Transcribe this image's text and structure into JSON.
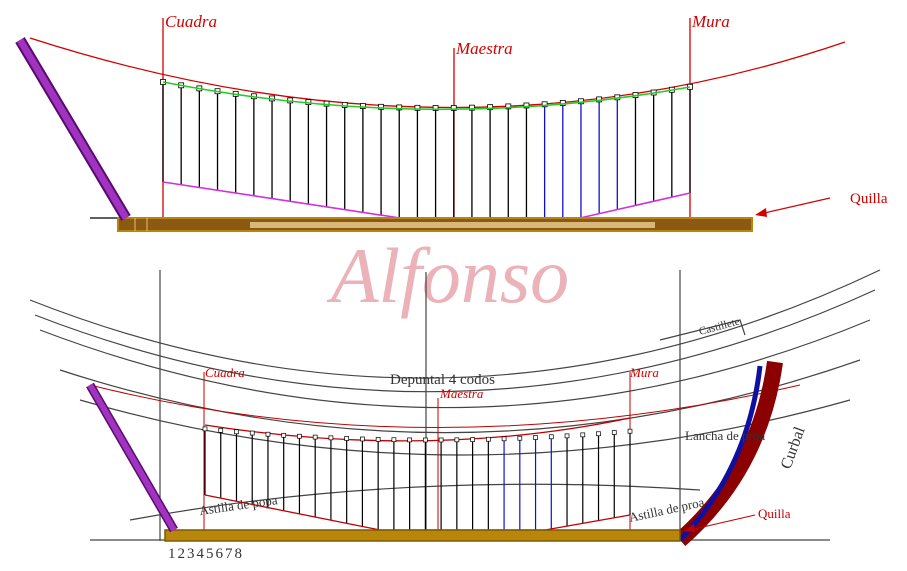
{
  "watermark": "Alfonso",
  "top": {
    "labels": {
      "cuadra": "Cuadra",
      "maestra": "Maestra",
      "mura": "Mura",
      "quilla": "Quilla"
    }
  },
  "bottom": {
    "labels": {
      "cuadra": "Cuadra",
      "maestra": "Maestra",
      "mura": "Mura",
      "quilla": "Quilla"
    },
    "manuscript": [
      "Depuntal 4 codos",
      "Castillete",
      "Astilla de popa",
      "Astilla de proa",
      "Lancha de proa",
      "Curbal",
      "12345678"
    ]
  }
}
